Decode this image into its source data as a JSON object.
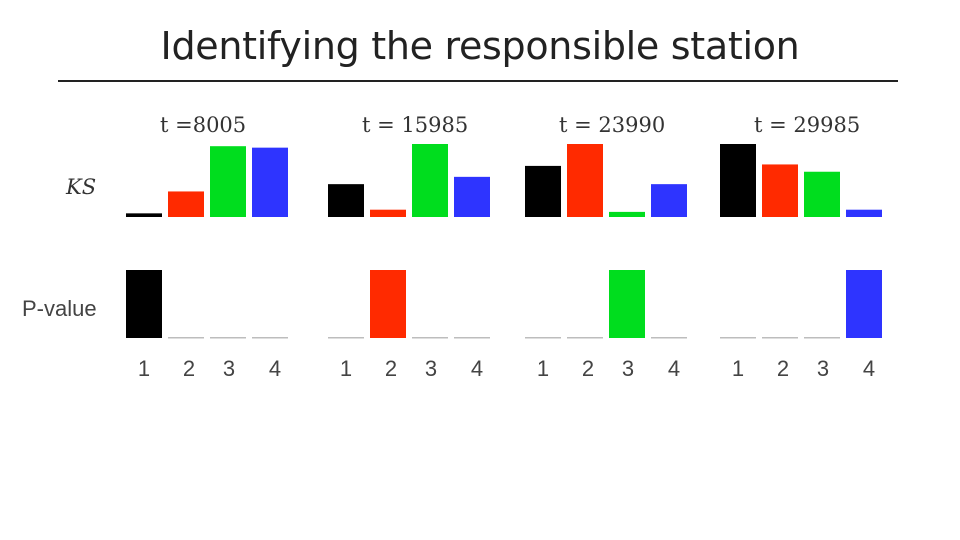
{
  "slide": {
    "title": "Identifying the responsible station"
  },
  "chart_data": {
    "type": "bar",
    "categories": [
      "1",
      "2",
      "3",
      "4"
    ],
    "colors": [
      "#000000",
      "#ff2a00",
      "#00dd1e",
      "#2e34ff"
    ],
    "row_labels": [
      "KS",
      "P-value"
    ],
    "panels": [
      {
        "title": "t =8005",
        "ks": [
          0.05,
          0.35,
          0.97,
          0.95
        ],
        "pvalue": [
          1.0,
          0.02,
          0.02,
          0.02
        ]
      },
      {
        "title": "t = 15985",
        "ks": [
          0.45,
          0.1,
          1.0,
          0.55
        ],
        "pvalue": [
          0.02,
          1.0,
          0.02,
          0.02
        ]
      },
      {
        "title": "t = 23990",
        "ks": [
          0.7,
          1.0,
          0.07,
          0.45
        ],
        "pvalue": [
          0.02,
          0.02,
          1.0,
          0.02
        ]
      },
      {
        "title": "t = 29985",
        "ks": [
          1.0,
          0.72,
          0.62,
          0.1
        ],
        "pvalue": [
          0.02,
          0.02,
          0.02,
          1.0
        ]
      }
    ],
    "ylim": [
      0,
      1
    ]
  }
}
